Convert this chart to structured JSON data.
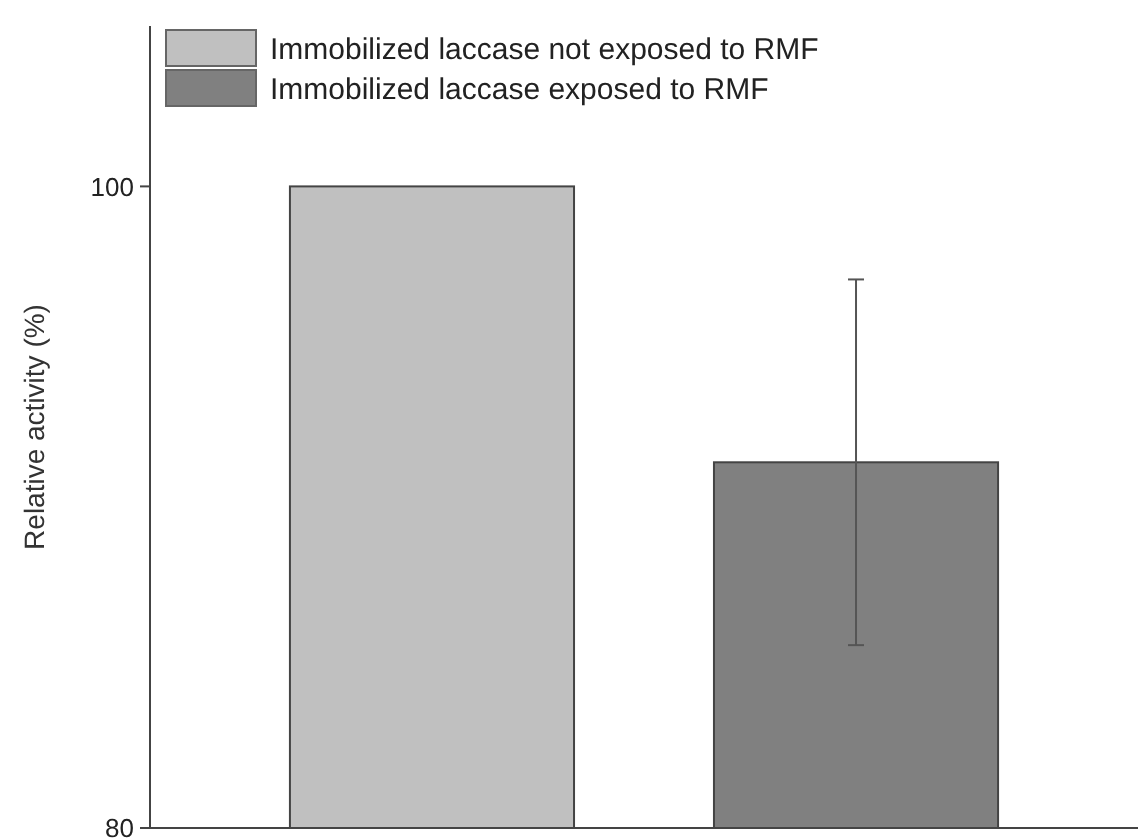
{
  "chart_data": {
    "type": "bar",
    "ylabel": "Relative activity (%)",
    "categories": [
      null
    ],
    "series": [
      {
        "name": "Immobilized laccase not exposed to RMF",
        "color": "#c0c0c0",
        "values": [
          100
        ]
      },
      {
        "name": "Immobilized laccase exposed to RMF",
        "color": "#808080",
        "values": [
          91.4
        ],
        "errors": [
          5.7
        ]
      }
    ],
    "ylim": [
      80,
      105
    ],
    "yticks": [
      80,
      100
    ],
    "grid": false,
    "legend": "top left"
  }
}
